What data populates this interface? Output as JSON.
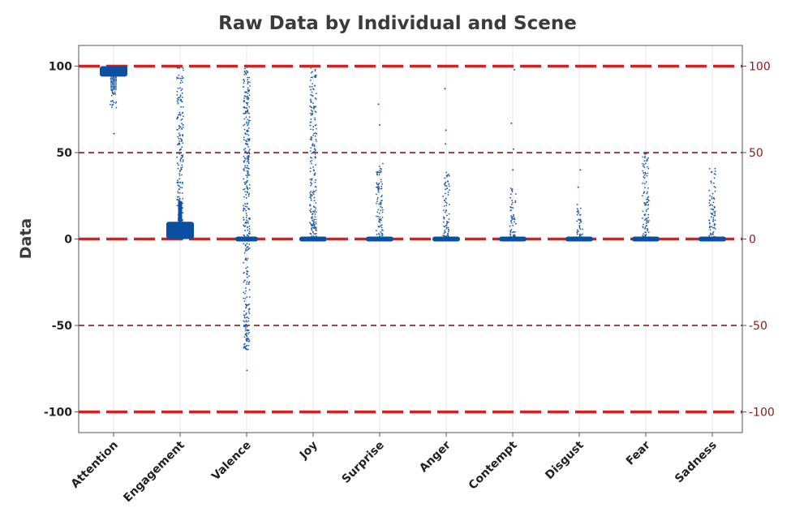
{
  "chart_data": {
    "type": "scatter",
    "title": "Raw Data by Individual and Scene",
    "xlabel": "",
    "ylabel": "Data",
    "ylim": [
      -112,
      112
    ],
    "yticks": [
      100,
      50,
      0,
      -50,
      -100
    ],
    "ytick_labels": [
      "100",
      "50",
      "0",
      "-50",
      "-100"
    ],
    "categories": [
      "Attention",
      "Engagement",
      "Valence",
      "Joy",
      "Surprise",
      "Anger",
      "Contempt",
      "Disgust",
      "Fear",
      "Sadness"
    ],
    "reference_lines": [
      {
        "y": 100,
        "style": "heavy-dash",
        "color": "#d42020"
      },
      {
        "y": 50,
        "style": "thin-dash",
        "color": "#8b1a1a"
      },
      {
        "y": 0,
        "style": "heavy-dash",
        "color": "#d42020"
      },
      {
        "y": -50,
        "style": "thin-dash",
        "color": "#8b1a1a"
      },
      {
        "y": -100,
        "style": "heavy-dash",
        "color": "#d42020"
      }
    ],
    "series": [
      {
        "name": "Attention",
        "dense_range": [
          94,
          100
        ],
        "spread_range": [
          76,
          100
        ],
        "outliers": [
          61,
          80,
          84,
          88
        ]
      },
      {
        "name": "Engagement",
        "dense_range": [
          0,
          10
        ],
        "spread_range": [
          0,
          100
        ],
        "outliers": []
      },
      {
        "name": "Valence",
        "dense_range": [
          -1,
          1
        ],
        "spread_range": [
          -64,
          100
        ],
        "outliers": [
          -76,
          -62,
          -58
        ]
      },
      {
        "name": "Joy",
        "dense_range": [
          -1,
          1
        ],
        "spread_range": [
          0,
          100
        ],
        "outliers": []
      },
      {
        "name": "Surprise",
        "dense_range": [
          -1,
          1
        ],
        "spread_range": [
          0,
          45
        ],
        "outliers": [
          66,
          78
        ]
      },
      {
        "name": "Anger",
        "dense_range": [
          -1,
          1
        ],
        "spread_range": [
          0,
          40
        ],
        "outliers": [
          55,
          63,
          87
        ]
      },
      {
        "name": "Contempt",
        "dense_range": [
          -1,
          1
        ],
        "spread_range": [
          0,
          30
        ],
        "outliers": [
          40,
          52,
          67,
          98
        ]
      },
      {
        "name": "Disgust",
        "dense_range": [
          -1,
          1
        ],
        "spread_range": [
          0,
          20
        ],
        "outliers": [
          30,
          40,
          50
        ]
      },
      {
        "name": "Fear",
        "dense_range": [
          -1,
          1
        ],
        "spread_range": [
          0,
          50
        ],
        "outliers": []
      },
      {
        "name": "Sadness",
        "dense_range": [
          -1,
          1
        ],
        "spread_range": [
          0,
          42
        ],
        "outliers": []
      }
    ],
    "colors": {
      "points": "#1f5aa6",
      "dense": "#0b4fa0",
      "heavy_line": "#d42020",
      "thin_line": "#8b1a1a",
      "frame": "#555555",
      "grid": "#e6e6e6"
    },
    "legend": "none",
    "grid": true
  }
}
